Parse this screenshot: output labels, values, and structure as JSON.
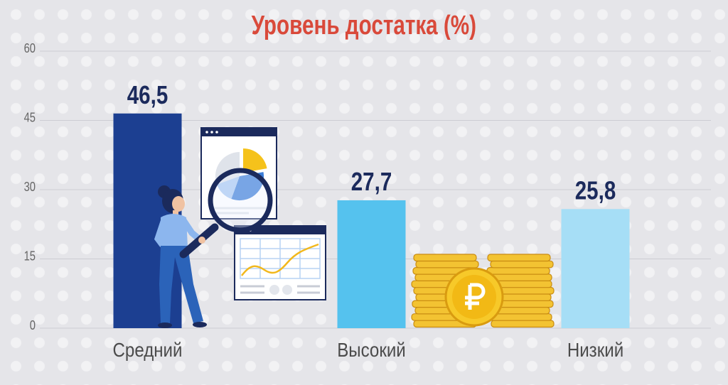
{
  "chart_data": {
    "type": "bar",
    "title": "Уровень достатка (%)",
    "categories": [
      "Средний",
      "Высокий",
      "Низкий"
    ],
    "values": [
      46.5,
      27.7,
      25.8
    ],
    "value_labels": [
      "46,5",
      "27,7",
      "25,8"
    ],
    "ylim": [
      0,
      60
    ],
    "yticks": [
      0,
      15,
      30,
      45,
      60
    ],
    "grid": true,
    "colors": [
      "#1c3f91",
      "#55c2ee",
      "#a6def6"
    ]
  },
  "theme": {
    "title_color": "#d9493a",
    "value_label_color": "#1b2a5c",
    "background": "#e5e5e9"
  },
  "illustrations": [
    "woman-with-magnifier-icon",
    "magnifier-icon",
    "pie-chart-dashboard-icon",
    "line-chart-dashboard-icon",
    "ruble-coins-icon"
  ]
}
